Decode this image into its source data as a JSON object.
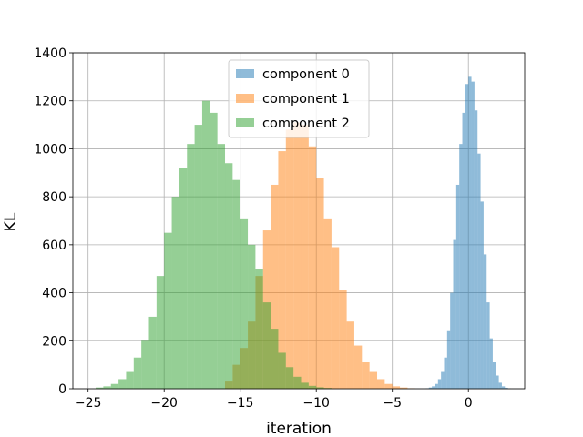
{
  "chart_data": {
    "type": "histogram",
    "xlabel": "iteration",
    "ylabel": "KL",
    "xlim": [
      -26,
      3.7
    ],
    "ylim": [
      0,
      1400
    ],
    "xticks": [
      -25,
      -20,
      -15,
      -10,
      -5,
      0
    ],
    "xtick_labels": [
      "−25",
      "−20",
      "−15",
      "−10",
      "−5",
      "0"
    ],
    "yticks": [
      0,
      200,
      400,
      600,
      800,
      1000,
      1200,
      1400
    ],
    "ytick_labels": [
      "0",
      "200",
      "400",
      "600",
      "800",
      "1000",
      "1200",
      "1400"
    ],
    "grid": true,
    "legend_position": "top-center",
    "series": [
      {
        "name": "component 0",
        "color": "#1f77b4",
        "alpha": 0.5,
        "bin_start": -2.8,
        "bin_width": 0.2,
        "values": [
          2,
          5,
          10,
          20,
          40,
          70,
          130,
          240,
          400,
          620,
          850,
          1020,
          1150,
          1270,
          1300,
          1280,
          1160,
          980,
          780,
          560,
          360,
          210,
          110,
          55,
          25,
          10,
          4,
          1
        ]
      },
      {
        "name": "component 1",
        "color": "#ff7f0e",
        "alpha": 0.5,
        "bin_start": -16.0,
        "bin_width": 0.5,
        "values": [
          30,
          100,
          170,
          280,
          470,
          660,
          850,
          990,
          1080,
          1110,
          1100,
          1010,
          880,
          710,
          590,
          410,
          280,
          180,
          110,
          70,
          40,
          20,
          10,
          5,
          2
        ]
      },
      {
        "name": "component 2",
        "color": "#2ca02c",
        "alpha": 0.5,
        "bin_start": -24.5,
        "bin_width": 0.5,
        "values": [
          5,
          10,
          20,
          40,
          70,
          130,
          200,
          300,
          470,
          650,
          800,
          920,
          1020,
          1100,
          1200,
          1150,
          1020,
          940,
          870,
          710,
          600,
          500,
          360,
          250,
          150,
          90,
          50,
          25,
          12,
          6,
          3
        ]
      }
    ]
  }
}
